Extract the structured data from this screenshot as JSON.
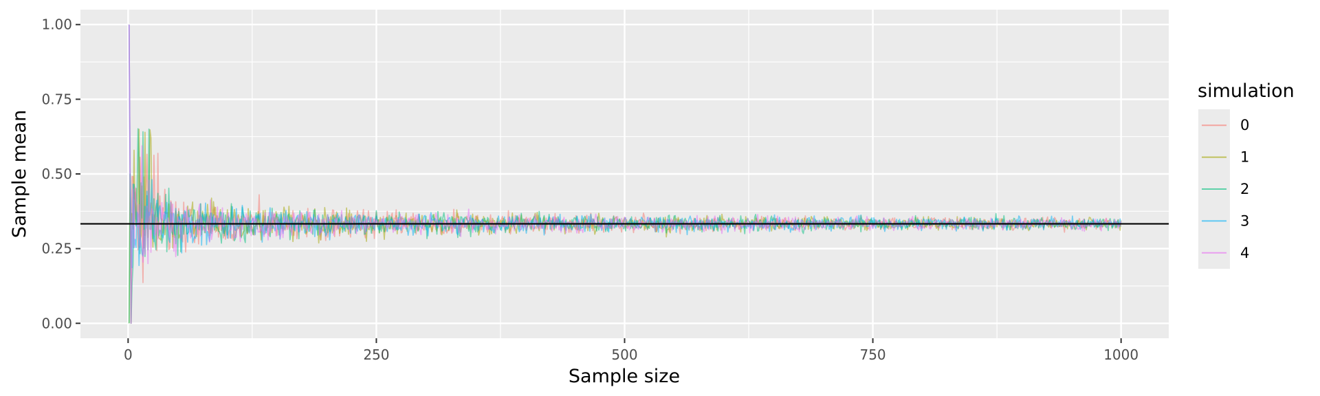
{
  "chart_data": {
    "type": "line",
    "xlabel": "Sample size",
    "ylabel": "Sample mean",
    "xlim": [
      -48,
      1048
    ],
    "ylim": [
      -0.05,
      1.05
    ],
    "x_ticks": [
      0,
      250,
      500,
      750,
      1000
    ],
    "x_tick_labels": [
      "0",
      "250",
      "500",
      "750",
      "1000"
    ],
    "y_ticks": [
      0.0,
      0.25,
      0.5,
      0.75,
      1.0
    ],
    "y_tick_labels": [
      "0.00",
      "0.25",
      "0.50",
      "0.75",
      "1.00"
    ],
    "grid": true,
    "legend_position": "right",
    "legend_title": "simulation",
    "reference_line": {
      "y": 0.333,
      "color": "#000000"
    },
    "x_range": [
      1,
      1000
    ],
    "series": [
      {
        "name": "0",
        "color": "#F8766D",
        "start": 1.0,
        "peak": 0.6,
        "center": 0.333
      },
      {
        "name": "1",
        "color": "#A3A500",
        "start": 0.0,
        "peak": 0.667,
        "center": 0.333
      },
      {
        "name": "2",
        "color": "#00BF7D",
        "start": 0.0,
        "peak": 0.667,
        "center": 0.333
      },
      {
        "name": "3",
        "color": "#00B0F6",
        "start": 1.0,
        "peak": 0.5,
        "center": 0.333
      },
      {
        "name": "4",
        "color": "#E76BF3",
        "start": 1.0,
        "peak": 0.6,
        "center": 0.333
      }
    ]
  }
}
